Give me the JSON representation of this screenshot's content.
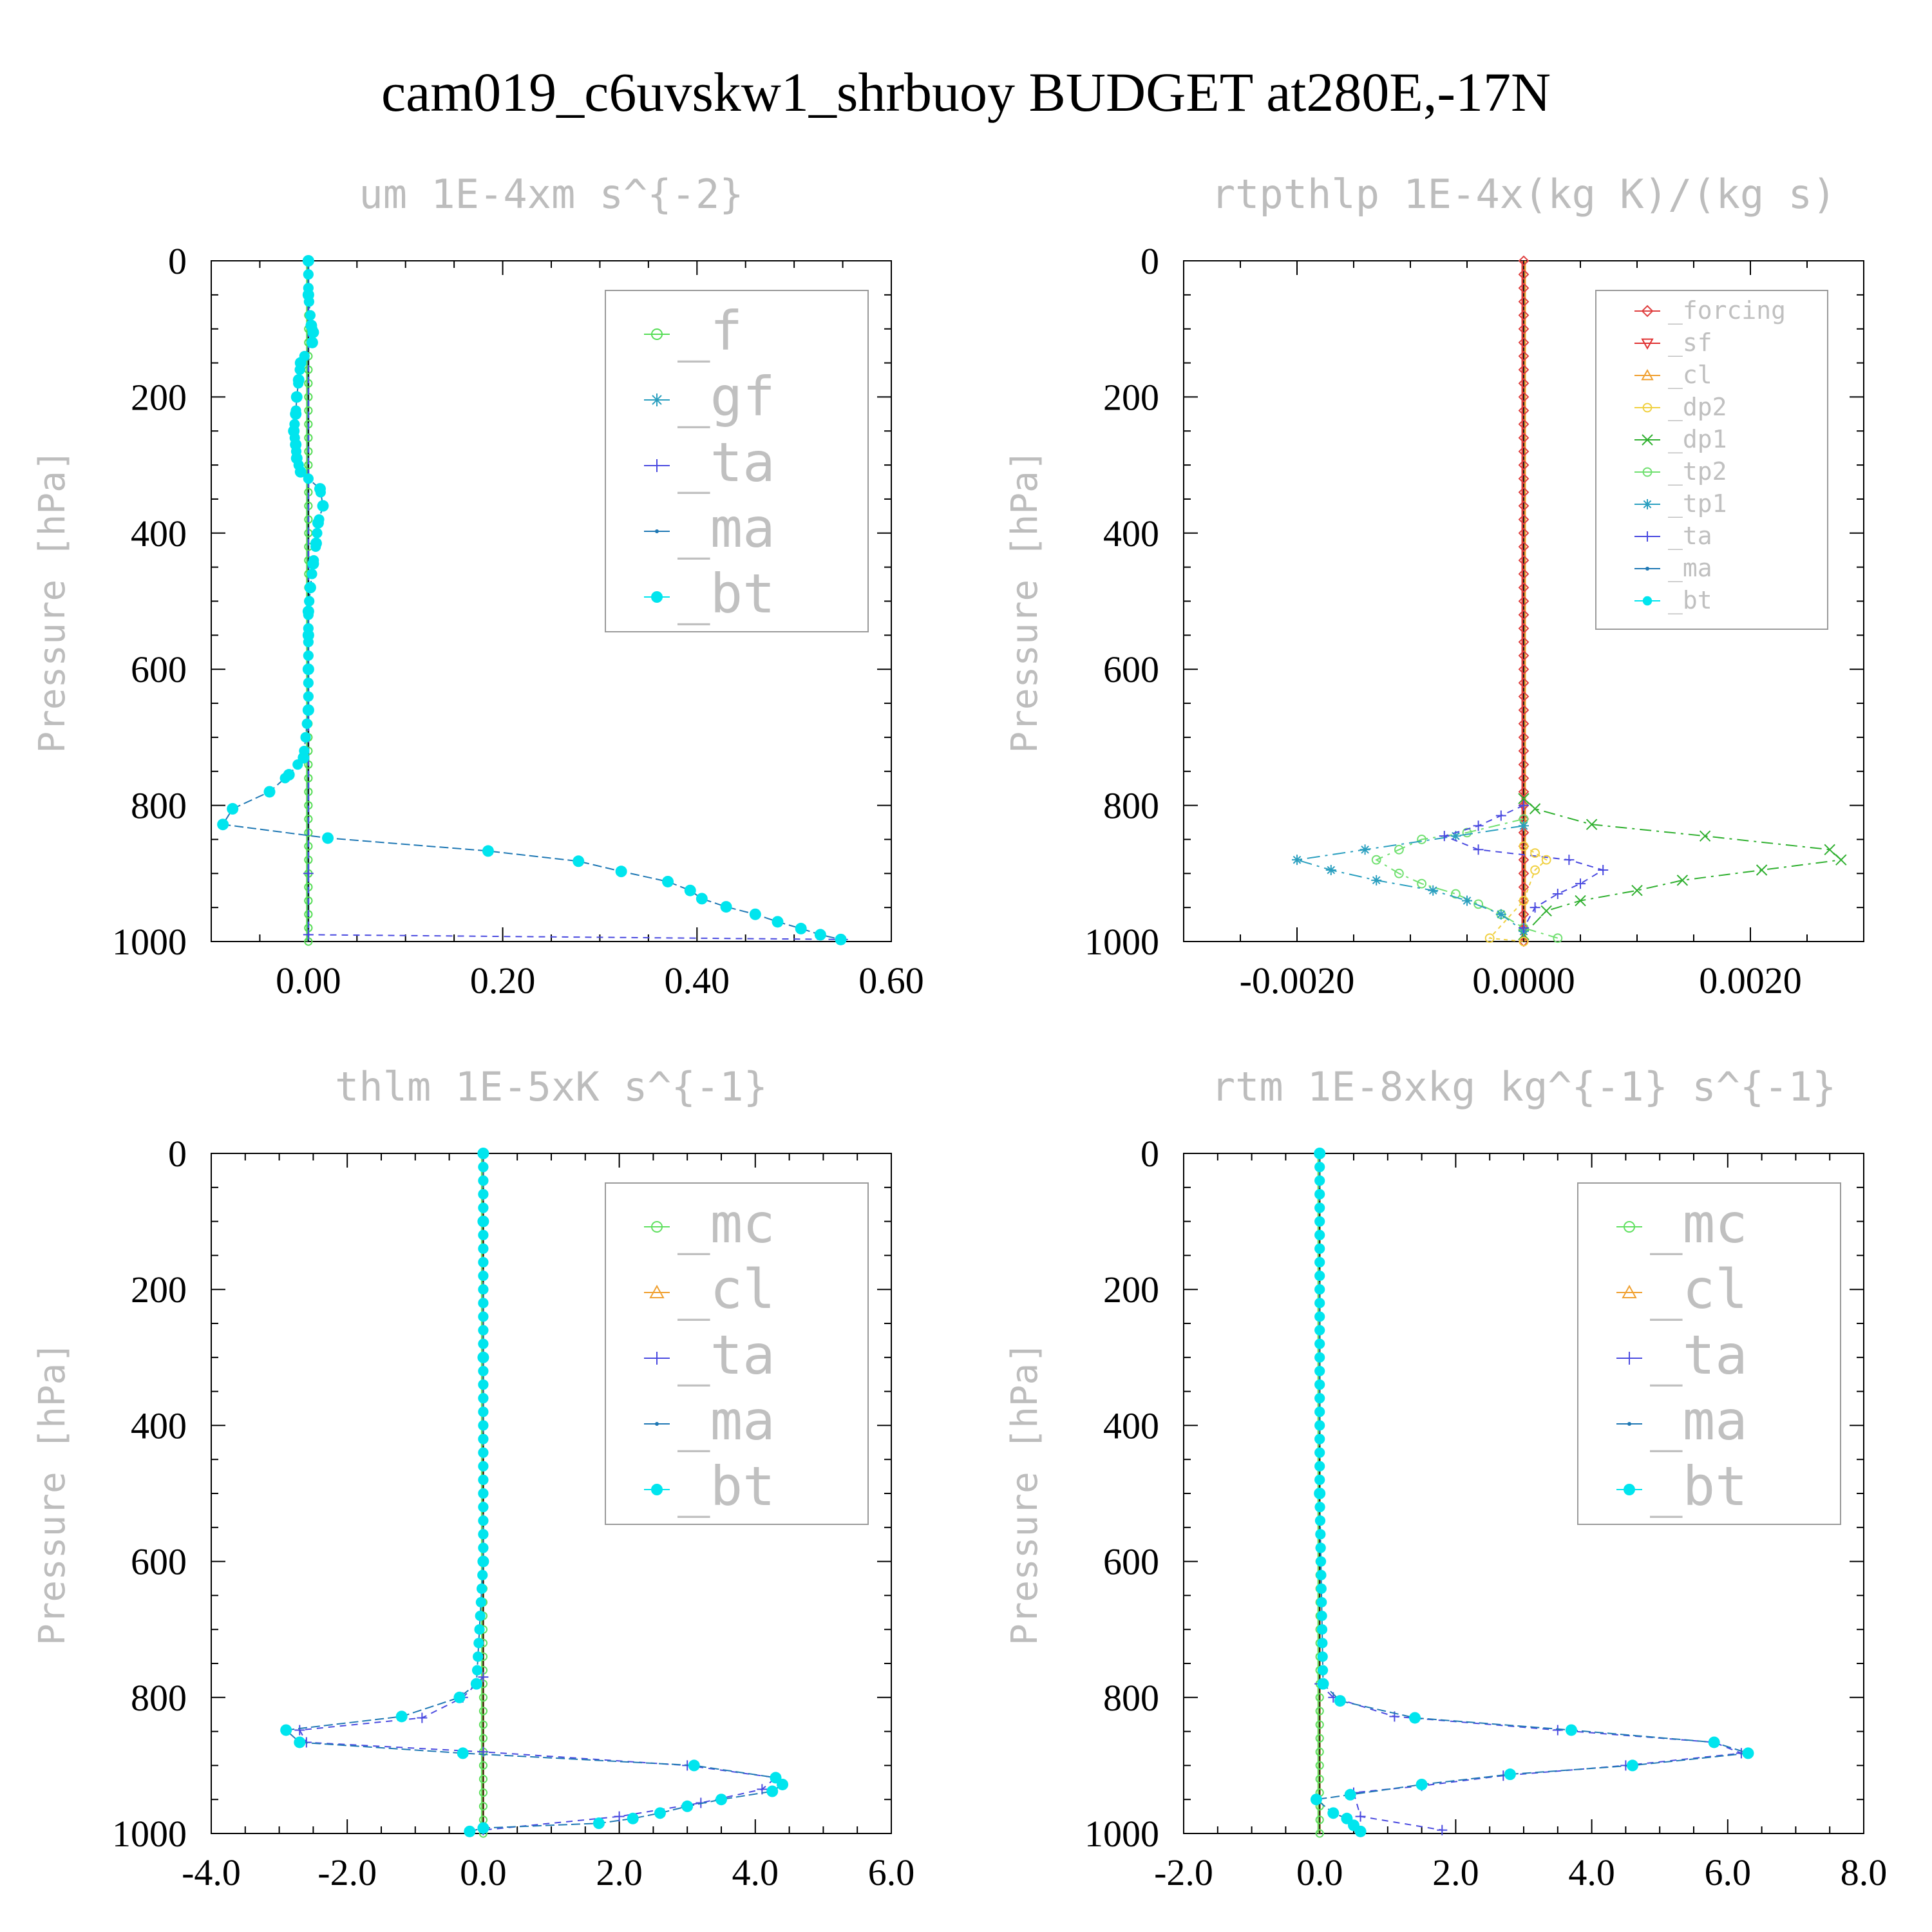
{
  "figure": {
    "title": "cam019_c6uvskw1_shrbuoy  BUDGET at280E,-17N"
  },
  "colors": {
    "_f": "#55dd55",
    "_gf": "#2a9fbf",
    "_ta": "#4a4ae0",
    "_ma": "#1f78b4",
    "_bt": "#00e5ee",
    "_forcing": "#e04040",
    "_sf": "#e03030",
    "_cl": "#f0a030",
    "_dp2": "#f0d040",
    "_dp1": "#30b030",
    "_tp2": "#70e070",
    "_tp1": "#2a9fbf",
    "_mc": "#60e060"
  },
  "chart_data": [
    {
      "type": "line",
      "title": "um  1E-4xm s^{-2}",
      "ylabel": "Pressure [hPa]",
      "xlim": [
        -0.1,
        0.6
      ],
      "ylim": [
        1000,
        0
      ],
      "xticks": [
        0.0,
        0.2,
        0.4,
        0.6
      ],
      "xtick_labels": [
        "0.00",
        "0.20",
        "0.40",
        "0.60"
      ],
      "yticks": [
        0,
        200,
        400,
        600,
        800,
        1000
      ],
      "ytick_labels": [
        "0",
        "200",
        "400",
        "600",
        "800",
        "1000"
      ],
      "legend": [
        "_f",
        "_gf",
        "_ta",
        "_ma",
        "_bt"
      ],
      "legend_size": "large",
      "zero_series": [
        "_f",
        "_gf"
      ],
      "series": [
        {
          "name": "_ta",
          "x": [
            0,
            0,
            0,
            0.55
          ],
          "y": [
            0,
            900,
            990,
            997
          ]
        },
        {
          "name": "_bt",
          "x": [
            0.0,
            0.0,
            0.003,
            0.005,
            0.004,
            -0.008,
            -0.01,
            -0.012,
            -0.013,
            -0.015,
            -0.013,
            -0.012,
            -0.008,
            0.012,
            0.015,
            0.01,
            0.008,
            0.005,
            0.002,
            0.0,
            0.0,
            0.0,
            0.0,
            -0.005,
            -0.02,
            -0.04,
            -0.078,
            -0.088,
            0.02,
            0.185,
            0.278,
            0.322,
            0.37,
            0.393,
            0.405,
            0.43,
            0.46,
            0.483,
            0.507,
            0.527,
            0.548
          ],
          "y": [
            0,
            50,
            95,
            105,
            120,
            150,
            175,
            200,
            225,
            250,
            270,
            290,
            310,
            335,
            360,
            385,
            415,
            445,
            480,
            515,
            550,
            600,
            660,
            730,
            755,
            780,
            805,
            828,
            848,
            867,
            882,
            897,
            912,
            925,
            937,
            949,
            960,
            971,
            981,
            990,
            997
          ]
        }
      ]
    },
    {
      "type": "line",
      "title": "rtpthlp  1E-4x(kg K)/(kg s)",
      "ylabel": "Pressure [hPa]",
      "xlim": [
        -0.003,
        0.003
      ],
      "ylim": [
        1000,
        0
      ],
      "xticks": [
        -0.002,
        0.0,
        0.002
      ],
      "xtick_labels": [
        "-0.0020",
        "0.0000",
        "0.0020"
      ],
      "yticks": [
        0,
        200,
        400,
        600,
        800,
        1000
      ],
      "ytick_labels": [
        "0",
        "200",
        "400",
        "600",
        "800",
        "1000"
      ],
      "legend": [
        "_forcing",
        "_sf",
        "_cl",
        "_dp2",
        "_dp1",
        "_tp2",
        "_tp1",
        "_ta",
        "_ma",
        "_bt"
      ],
      "legend_size": "small",
      "zero_series": [
        "_forcing",
        "_sf",
        "_cl"
      ],
      "series": [
        {
          "name": "_dp1",
          "x": [
            0,
            0.0001,
            0.0006,
            0.0016,
            0.0027,
            0.0028,
            0.0021,
            0.0014,
            0.001,
            0.0005,
            0.0002,
            0
          ],
          "y": [
            790,
            805,
            828,
            845,
            865,
            880,
            895,
            910,
            925,
            940,
            955,
            990
          ]
        },
        {
          "name": "_tp2",
          "x": [
            0,
            -0.0005,
            -0.0009,
            -0.0011,
            -0.0013,
            -0.0011,
            -0.0009,
            -0.0006,
            -0.0004,
            -0.0002,
            0,
            0.0003
          ],
          "y": [
            820,
            840,
            850,
            865,
            880,
            900,
            915,
            930,
            945,
            960,
            980,
            995
          ]
        },
        {
          "name": "_tp1",
          "x": [
            0,
            -0.0006,
            -0.0014,
            -0.002,
            -0.0017,
            -0.0013,
            -0.0008,
            -0.0005,
            -0.0002,
            0
          ],
          "y": [
            830,
            845,
            865,
            880,
            895,
            910,
            925,
            940,
            960,
            985
          ]
        },
        {
          "name": "_ta",
          "x": [
            0,
            -0.0002,
            -0.0004,
            -0.0007,
            -0.0004,
            0.0004,
            0.0007,
            0.0005,
            0.0003,
            0.0001,
            0
          ],
          "y": [
            800,
            815,
            830,
            845,
            865,
            880,
            895,
            915,
            930,
            950,
            980
          ]
        },
        {
          "name": "_dp2",
          "x": [
            0,
            0.0001,
            0.0002,
            0.0001,
            0,
            -0.0003,
            0
          ],
          "y": [
            860,
            870,
            880,
            895,
            940,
            995,
            1000
          ]
        }
      ]
    },
    {
      "type": "line",
      "title": "thlm  1E-5xK s^{-1}",
      "ylabel": "Pressure [hPa]",
      "xlim": [
        -4.0,
        6.0
      ],
      "ylim": [
        1000,
        0
      ],
      "xticks": [
        -4.0,
        -2.0,
        0.0,
        2.0,
        4.0,
        6.0
      ],
      "xtick_labels": [
        "-4.0",
        "-2.0",
        "0.0",
        "2.0",
        "4.0",
        "6.0"
      ],
      "yticks": [
        0,
        200,
        400,
        600,
        800,
        1000
      ],
      "ytick_labels": [
        "0",
        "200",
        "400",
        "600",
        "800",
        "1000"
      ],
      "legend": [
        "_mc",
        "_cl",
        "_ta",
        "_ma",
        "_bt"
      ],
      "legend_size": "large",
      "zero_series": [
        "_mc",
        "_cl"
      ],
      "series": [
        {
          "name": "_ta",
          "x": [
            0,
            -0.3,
            -0.9,
            -2.7,
            -2.6,
            0,
            3.0,
            4.3,
            4.1,
            3.2,
            2.0,
            0
          ],
          "y": [
            770,
            800,
            830,
            848,
            866,
            880,
            900,
            918,
            935,
            955,
            975,
            995
          ]
        },
        {
          "name": "_bt",
          "x": [
            0.0,
            0.0,
            0.0,
            0.0,
            -0.1,
            -0.35,
            -1.2,
            -2.9,
            -2.7,
            -0.3,
            3.1,
            4.3,
            4.4,
            4.25,
            3.5,
            3.0,
            2.6,
            2.2,
            1.7,
            0.0,
            -0.2
          ],
          "y": [
            0,
            100,
            300,
            600,
            780,
            800,
            828,
            848,
            866,
            882,
            900,
            918,
            928,
            938,
            950,
            960,
            970,
            978,
            985,
            992,
            997
          ]
        }
      ]
    },
    {
      "type": "line",
      "title": "rtm  1E-8xkg kg^{-1} s^{-1}",
      "ylabel": "Pressure [hPa]",
      "xlim": [
        -2.0,
        8.0
      ],
      "ylim": [
        1000,
        0
      ],
      "xticks": [
        -2.0,
        0.0,
        2.0,
        4.0,
        6.0,
        8.0
      ],
      "xtick_labels": [
        "-2.0",
        "0.0",
        "2.0",
        "4.0",
        "6.0",
        "8.0"
      ],
      "yticks": [
        0,
        200,
        400,
        600,
        800,
        1000
      ],
      "ytick_labels": [
        "0",
        "200",
        "400",
        "600",
        "800",
        "1000"
      ],
      "legend": [
        "_mc",
        "_cl",
        "_ta",
        "_ma",
        "_bt"
      ],
      "legend_size": "large",
      "zero_series": [
        "_mc",
        "_cl"
      ],
      "series": [
        {
          "name": "_ta",
          "x": [
            0,
            0.2,
            1.1,
            3.5,
            5.8,
            6.2,
            4.5,
            2.7,
            1.5,
            0.5,
            0.6,
            1.8
          ],
          "y": [
            780,
            800,
            828,
            848,
            866,
            882,
            900,
            915,
            930,
            940,
            975,
            995
          ]
        },
        {
          "name": "_bt",
          "x": [
            0.0,
            0.0,
            0.05,
            0.3,
            1.4,
            3.7,
            5.8,
            6.3,
            4.6,
            2.8,
            1.5,
            0.45,
            -0.05,
            0.2,
            0.4,
            0.5,
            0.6
          ],
          "y": [
            0,
            500,
            780,
            805,
            830,
            848,
            866,
            882,
            900,
            913,
            928,
            943,
            950,
            970,
            978,
            988,
            997
          ]
        }
      ]
    }
  ]
}
